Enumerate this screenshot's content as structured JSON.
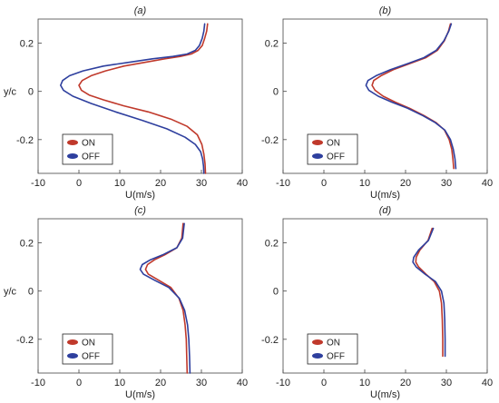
{
  "chart_data": [
    {
      "type": "line",
      "title": "(a)",
      "xlabel": "U(m/s)",
      "ylabel": "y/c",
      "xlim": [
        -10,
        40
      ],
      "ylim": [
        -0.34,
        0.3
      ],
      "xticks": [
        -10,
        0,
        10,
        20,
        30,
        40
      ],
      "yticks": [
        -0.2,
        0,
        0.2
      ],
      "legend_position": "bottom-left",
      "series": [
        {
          "name": "ON",
          "color": "#c0392b",
          "x": [
            31.5,
            31.3,
            30.8,
            30.2,
            29.2,
            27.5,
            24.8,
            21.0,
            16.0,
            11.0,
            6.5,
            3.0,
            0.8,
            0.0,
            0.6,
            2.5,
            6.0,
            11.0,
            17.0,
            22.5,
            26.5,
            29.0,
            30.1,
            30.6,
            30.9,
            31.0
          ],
          "y": [
            0.28,
            0.25,
            0.22,
            0.19,
            0.17,
            0.155,
            0.145,
            0.135,
            0.12,
            0.105,
            0.085,
            0.065,
            0.045,
            0.025,
            0.005,
            -0.015,
            -0.035,
            -0.06,
            -0.085,
            -0.115,
            -0.145,
            -0.18,
            -0.22,
            -0.26,
            -0.3,
            -0.34
          ]
        },
        {
          "name": "OFF",
          "color": "#2e3f9e",
          "x": [
            30.8,
            30.6,
            30.2,
            29.5,
            28.5,
            26.5,
            23.0,
            18.0,
            12.0,
            6.0,
            1.0,
            -2.3,
            -4.0,
            -4.5,
            -3.8,
            -1.5,
            3.0,
            9.0,
            15.5,
            21.5,
            26.0,
            28.5,
            29.8,
            30.3,
            30.5,
            30.6
          ],
          "y": [
            0.28,
            0.25,
            0.22,
            0.19,
            0.17,
            0.155,
            0.145,
            0.135,
            0.12,
            0.105,
            0.085,
            0.065,
            0.045,
            0.025,
            0.005,
            -0.02,
            -0.05,
            -0.085,
            -0.12,
            -0.155,
            -0.19,
            -0.22,
            -0.25,
            -0.28,
            -0.31,
            -0.34
          ]
        }
      ]
    },
    {
      "type": "line",
      "title": "(b)",
      "xlabel": "U(m/s)",
      "ylabel": "",
      "xlim": [
        -10,
        40
      ],
      "ylim": [
        -0.34,
        0.3
      ],
      "xticks": [
        -10,
        0,
        10,
        20,
        30,
        40
      ],
      "yticks": [
        -0.2,
        0,
        0.2
      ],
      "legend_position": "bottom-left",
      "series": [
        {
          "name": "ON",
          "color": "#c0392b",
          "x": [
            31.0,
            30.5,
            29.5,
            27.8,
            25.0,
            21.0,
            17.0,
            14.0,
            12.2,
            11.8,
            12.5,
            14.5,
            17.5,
            21.0,
            24.5,
            27.5,
            29.5,
            30.7,
            31.3,
            31.6,
            31.8
          ],
          "y": [
            0.28,
            0.25,
            0.21,
            0.17,
            0.14,
            0.115,
            0.09,
            0.065,
            0.045,
            0.025,
            0.005,
            -0.02,
            -0.045,
            -0.07,
            -0.1,
            -0.13,
            -0.16,
            -0.2,
            -0.24,
            -0.28,
            -0.32
          ]
        },
        {
          "name": "OFF",
          "color": "#2e3f9e",
          "x": [
            31.2,
            30.6,
            29.4,
            27.5,
            24.5,
            20.5,
            16.3,
            12.8,
            10.8,
            10.3,
            11.0,
            13.3,
            16.7,
            20.5,
            24.2,
            27.3,
            29.6,
            31.0,
            31.7,
            32.1,
            32.3
          ],
          "y": [
            0.28,
            0.25,
            0.21,
            0.17,
            0.14,
            0.115,
            0.09,
            0.065,
            0.045,
            0.025,
            0.005,
            -0.02,
            -0.045,
            -0.07,
            -0.1,
            -0.13,
            -0.16,
            -0.2,
            -0.24,
            -0.28,
            -0.32
          ]
        }
      ]
    },
    {
      "type": "line",
      "title": "(c)",
      "xlabel": "U(m/s)",
      "ylabel": "y/c",
      "xlim": [
        -10,
        40
      ],
      "ylim": [
        -0.34,
        0.3
      ],
      "xticks": [
        -10,
        0,
        10,
        20,
        30,
        40
      ],
      "yticks": [
        -0.2,
        0,
        0.2
      ],
      "legend_position": "bottom-left",
      "series": [
        {
          "name": "ON",
          "color": "#c0392b",
          "x": [
            25.5,
            25.2,
            24.0,
            21.0,
            18.5,
            16.8,
            16.3,
            17.0,
            19.5,
            22.5,
            24.5,
            25.5,
            26.0,
            26.3,
            26.4,
            26.5
          ],
          "y": [
            0.28,
            0.22,
            0.18,
            0.15,
            0.13,
            0.11,
            0.09,
            0.07,
            0.045,
            0.015,
            -0.03,
            -0.08,
            -0.14,
            -0.2,
            -0.27,
            -0.34
          ]
        },
        {
          "name": "OFF",
          "color": "#2e3f9e",
          "x": [
            25.8,
            25.4,
            24.0,
            20.5,
            17.5,
            15.5,
            15.0,
            15.8,
            18.5,
            22.0,
            24.6,
            25.9,
            26.6,
            26.9,
            27.1,
            27.2
          ],
          "y": [
            0.28,
            0.22,
            0.18,
            0.15,
            0.13,
            0.11,
            0.09,
            0.07,
            0.045,
            0.015,
            -0.03,
            -0.08,
            -0.14,
            -0.2,
            -0.27,
            -0.34
          ]
        }
      ]
    },
    {
      "type": "line",
      "title": "(d)",
      "xlabel": "U(m/s)",
      "ylabel": "",
      "xlim": [
        -10,
        40
      ],
      "ylim": [
        -0.34,
        0.3
      ],
      "xticks": [
        -10,
        0,
        10,
        20,
        30,
        40
      ],
      "yticks": [
        -0.2,
        0,
        0.2
      ],
      "legend_position": "bottom-left",
      "series": [
        {
          "name": "ON",
          "color": "#c0392b",
          "x": [
            26.5,
            25.5,
            23.5,
            22.6,
            22.5,
            23.2,
            25.0,
            27.0,
            28.3,
            28.8,
            29.0,
            29.1,
            29.1
          ],
          "y": [
            0.26,
            0.21,
            0.17,
            0.14,
            0.12,
            0.1,
            0.07,
            0.04,
            0.0,
            -0.05,
            -0.12,
            -0.2,
            -0.27
          ]
        },
        {
          "name": "OFF",
          "color": "#2e3f9e",
          "x": [
            26.8,
            25.6,
            23.2,
            22.0,
            21.8,
            22.6,
            24.8,
            27.3,
            28.8,
            29.4,
            29.6,
            29.7,
            29.7
          ],
          "y": [
            0.26,
            0.21,
            0.17,
            0.14,
            0.12,
            0.1,
            0.07,
            0.04,
            0.0,
            -0.05,
            -0.12,
            -0.2,
            -0.27
          ]
        }
      ]
    }
  ]
}
